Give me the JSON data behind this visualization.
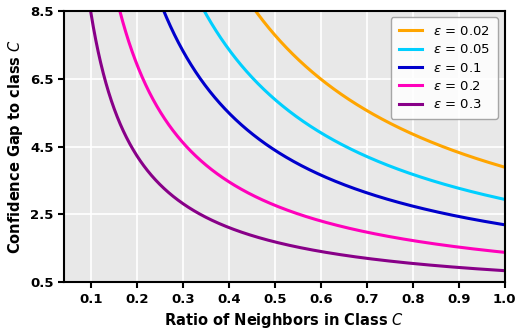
{
  "epsilons": [
    0.02,
    0.05,
    0.1,
    0.2,
    0.3
  ],
  "colors": [
    "#FFA500",
    "#00CFFF",
    "#0000CC",
    "#FF00BB",
    "#880088"
  ],
  "labels": [
    "$\\varepsilon$ = 0.02",
    "$\\varepsilon$ = 0.05",
    "$\\varepsilon$ = 0.1",
    "$\\varepsilon$ = 0.2",
    "$\\varepsilon$ = 0.3"
  ],
  "x_min": 0.042,
  "x_max": 1.0,
  "y_min": 0.5,
  "y_max": 8.5,
  "xlabel": "Ratio of Neighbors in Class $\\mathit{C}$",
  "ylabel": "Confidence Gap to class $\\mathit{C}$",
  "xticks": [
    0.1,
    0.2,
    0.3,
    0.4,
    0.5,
    0.6,
    0.7,
    0.8,
    0.9,
    1.0
  ],
  "yticks": [
    0.5,
    2.5,
    4.5,
    6.5,
    8.5
  ],
  "linewidth": 2.2,
  "background_color": "#e8e8e8"
}
